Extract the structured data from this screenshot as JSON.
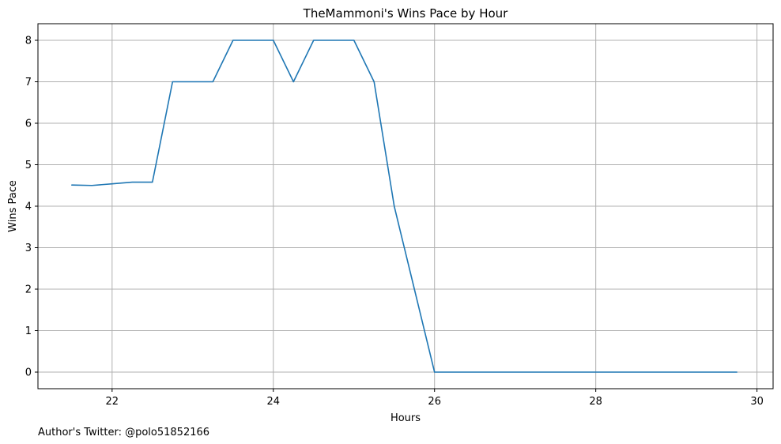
{
  "chart_data": {
    "type": "line",
    "title": "TheMammoni's Wins Pace by Hour",
    "xlabel": "Hours",
    "ylabel": "Wins Pace",
    "xlim": [
      21.08,
      30.2
    ],
    "ylim": [
      -0.4,
      8.4
    ],
    "xticks": [
      22,
      24,
      26,
      28,
      30
    ],
    "yticks": [
      0,
      1,
      2,
      3,
      4,
      5,
      6,
      7,
      8
    ],
    "grid": true,
    "series": [
      {
        "color": "#1f77b4",
        "x": [
          21.5,
          21.75,
          22.0,
          22.25,
          22.5,
          22.75,
          23.0,
          23.25,
          23.5,
          23.75,
          24.0,
          24.25,
          24.5,
          24.75,
          25.0,
          25.25,
          25.5,
          25.75,
          26.0,
          26.25,
          26.5,
          26.75,
          27.0,
          27.25,
          27.5,
          27.75,
          28.0,
          28.25,
          28.5,
          28.75,
          29.0,
          29.25,
          29.5,
          29.75
        ],
        "y": [
          4.51,
          4.5,
          4.54,
          4.58,
          4.58,
          7,
          7,
          7,
          8,
          8,
          8,
          7,
          8,
          8,
          8,
          7,
          4,
          2,
          0,
          0,
          0,
          0,
          0,
          0,
          0,
          0,
          0,
          0,
          0,
          0,
          0,
          0,
          0,
          0
        ]
      }
    ]
  },
  "footer": {
    "credit": "Author's Twitter: @polo51852166"
  }
}
